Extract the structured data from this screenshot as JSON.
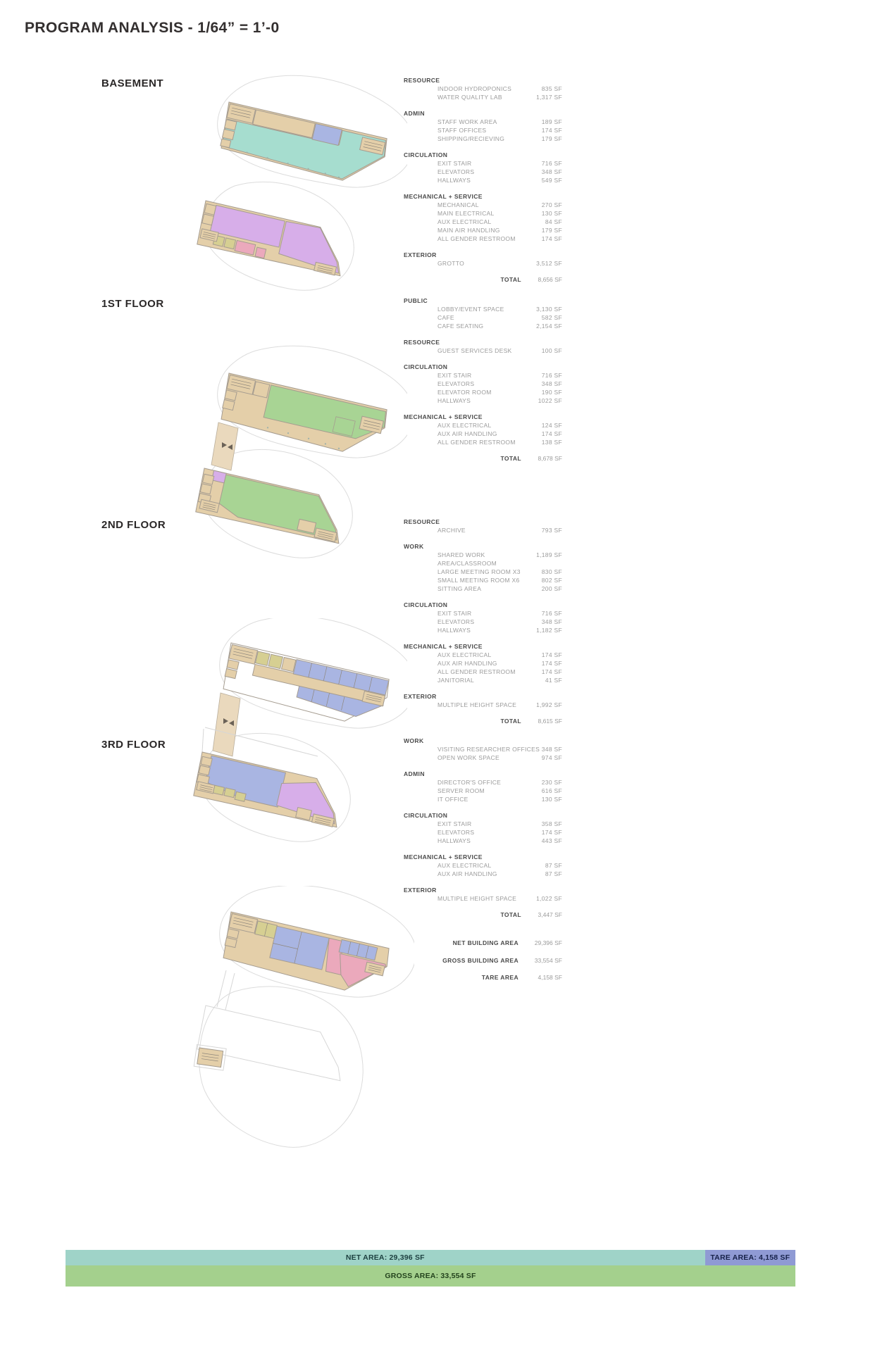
{
  "title": "PROGRAM ANALYSIS - 1/64” = 1’-0",
  "palette": {
    "tan": "#e4cfa9",
    "teal": "#a6ddcf",
    "green": "#a8d494",
    "blue": "#a9b5e2",
    "purple": "#d7aee9",
    "pink": "#eba9bc",
    "olive": "#d6cf92",
    "barTeal": "#9fd3c8",
    "barPurple": "#8f9ad4",
    "barGreen": "#a4d08d"
  },
  "floors": [
    {
      "label": "BASEMENT",
      "total_label": "TOTAL",
      "total": "8,656 SF",
      "sections": [
        {
          "category": "RESOURCE",
          "items": [
            {
              "label": "INDOOR HYDROPONICS",
              "area": "835 SF"
            },
            {
              "label": "WATER QUALITY LAB",
              "area": "1,317 SF"
            }
          ]
        },
        {
          "category": "ADMIN",
          "items": [
            {
              "label": "STAFF WORK AREA",
              "area": "189 SF"
            },
            {
              "label": "STAFF OFFICES",
              "area": "174 SF"
            },
            {
              "label": "SHIPPING/RECIEVING",
              "area": "179 SF"
            }
          ]
        },
        {
          "category": "CIRCULATION",
          "items": [
            {
              "label": "EXIT STAIR",
              "area": "716 SF"
            },
            {
              "label": "ELEVATORS",
              "area": "348 SF"
            },
            {
              "label": "HALLWAYS",
              "area": "549 SF"
            }
          ]
        },
        {
          "category": "MECHANICAL + SERVICE",
          "items": [
            {
              "label": "MECHANICAL",
              "area": "270 SF"
            },
            {
              "label": "MAIN ELECTRICAL",
              "area": "130 SF"
            },
            {
              "label": "AUX ELECTRICAL",
              "area": "84 SF"
            },
            {
              "label": "MAIN AIR HANDLING",
              "area": "179 SF"
            },
            {
              "label": "ALL GENDER RESTROOM",
              "area": "174 SF"
            }
          ]
        },
        {
          "category": "EXTERIOR",
          "items": [
            {
              "label": "GROTTO",
              "area": "3,512 SF"
            }
          ]
        }
      ]
    },
    {
      "label": "1ST FLOOR",
      "total_label": "TOTAL",
      "total": "8,678 SF",
      "sections": [
        {
          "category": "PUBLIC",
          "items": [
            {
              "label": "LOBBY/EVENT SPACE",
              "area": "3,130 SF"
            },
            {
              "label": "CAFE",
              "area": "582 SF"
            },
            {
              "label": "CAFE SEATING",
              "area": "2,154 SF"
            }
          ]
        },
        {
          "category": "RESOURCE",
          "items": [
            {
              "label": "GUEST SERVICES DESK",
              "area": "100 SF"
            }
          ]
        },
        {
          "category": "CIRCULATION",
          "items": [
            {
              "label": "EXIT STAIR",
              "area": "716 SF"
            },
            {
              "label": "ELEVATORS",
              "area": "348 SF"
            },
            {
              "label": "ELEVATOR ROOM",
              "area": "190 SF"
            },
            {
              "label": "HALLWAYS",
              "area": "1022 SF"
            }
          ]
        },
        {
          "category": "MECHANICAL + SERVICE",
          "items": [
            {
              "label": "AUX ELECTRICAL",
              "area": "124 SF"
            },
            {
              "label": "AUX AIR HANDLING",
              "area": "174 SF"
            },
            {
              "label": "ALL GENDER RESTROOM",
              "area": "138 SF"
            }
          ]
        }
      ]
    },
    {
      "label": "2ND FLOOR",
      "total_label": "TOTAL",
      "total": "8,615 SF",
      "sections": [
        {
          "category": "RESOURCE",
          "items": [
            {
              "label": "ARCHIVE",
              "area": "793 SF"
            }
          ]
        },
        {
          "category": "WORK",
          "items": [
            {
              "label": "SHARED WORK AREA/CLASSROOM",
              "area": "1,189 SF"
            },
            {
              "label": "LARGE MEETING ROOM X3",
              "area": "830 SF"
            },
            {
              "label": "SMALL MEETING ROOM X6",
              "area": "802 SF"
            },
            {
              "label": "SITTING AREA",
              "area": "200 SF"
            }
          ]
        },
        {
          "category": "CIRCULATION",
          "items": [
            {
              "label": "EXIT STAIR",
              "area": "716 SF"
            },
            {
              "label": "ELEVATORS",
              "area": "348 SF"
            },
            {
              "label": "HALLWAYS",
              "area": "1,182 SF"
            }
          ]
        },
        {
          "category": "MECHANICAL + SERVICE",
          "items": [
            {
              "label": "AUX ELECTRICAL",
              "area": "174 SF"
            },
            {
              "label": "AUX AIR HANDLING",
              "area": "174 SF"
            },
            {
              "label": "ALL GENDER RESTROOM",
              "area": "174 SF"
            },
            {
              "label": "JANITORIAL",
              "area": "41 SF"
            }
          ]
        },
        {
          "category": "EXTERIOR",
          "items": [
            {
              "label": "MULTIPLE HEIGHT SPACE",
              "area": "1,992 SF"
            }
          ]
        }
      ]
    },
    {
      "label": "3RD FLOOR",
      "total_label": "TOTAL",
      "total": "3,447 SF",
      "sections": [
        {
          "category": "WORK",
          "items": [
            {
              "label": "VISITING RESEARCHER OFFICES",
              "area": "348 SF"
            },
            {
              "label": "OPEN WORK SPACE",
              "area": "974 SF"
            }
          ]
        },
        {
          "category": "ADMIN",
          "items": [
            {
              "label": "DIRECTOR'S OFFICE",
              "area": "230 SF"
            },
            {
              "label": "SERVER ROOM",
              "area": "616 SF"
            },
            {
              "label": "IT OFFICE",
              "area": "130 SF"
            }
          ]
        },
        {
          "category": "CIRCULATION",
          "items": [
            {
              "label": "EXIT STAIR",
              "area": "358 SF"
            },
            {
              "label": "ELEVATORS",
              "area": "174 SF"
            },
            {
              "label": "HALLWAYS",
              "area": "443 SF"
            }
          ]
        },
        {
          "category": "MECHANICAL + SERVICE",
          "items": [
            {
              "label": "AUX ELECTRICAL",
              "area": "87 SF"
            },
            {
              "label": "AUX AIR HANDLING",
              "area": "87 SF"
            }
          ]
        },
        {
          "category": "EXTERIOR",
          "items": [
            {
              "label": "MULTIPLE HEIGHT SPACE",
              "area": "1,022 SF"
            }
          ]
        }
      ]
    }
  ],
  "summary": [
    {
      "label": "NET BUILDING AREA",
      "value": "29,396 SF"
    },
    {
      "label": "GROSS BUILDING AREA",
      "value": "33,554 SF"
    },
    {
      "label": "TARE AREA",
      "value": "4,158 SF"
    }
  ],
  "bars": {
    "net": {
      "label": "NET AREA: 29,396 SF",
      "value": 29396
    },
    "tare": {
      "label": "TARE AREA: 4,158 SF",
      "value": 4158
    },
    "gross": {
      "label": "GROSS AREA: 33,554 SF",
      "value": 33554
    }
  }
}
